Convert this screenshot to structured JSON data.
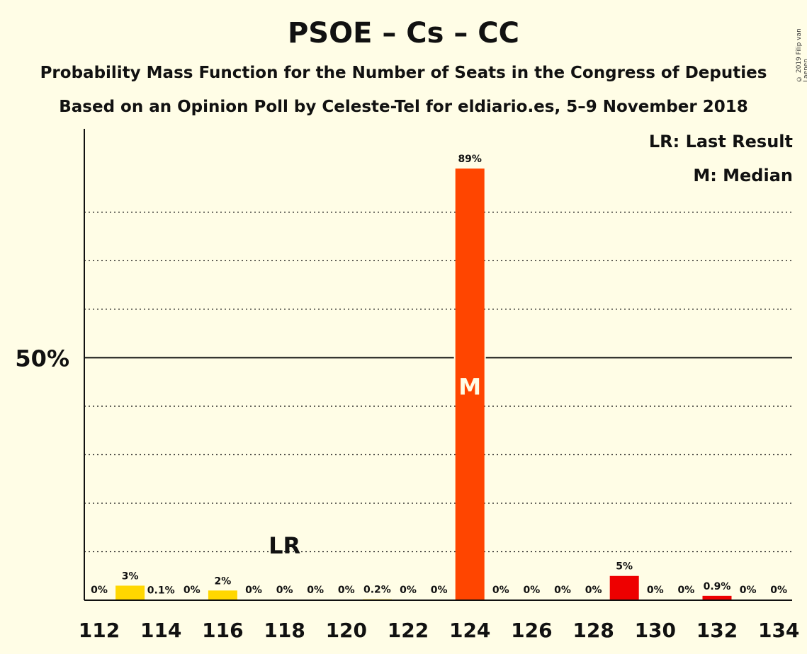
{
  "title": "PSOE – Cs – CC",
  "subtitle_1": "Probability Mass Function for the Number of Seats in the Congress of Deputies",
  "subtitle_2": "Based on an Opinion Poll by Celeste-Tel for eldiario.es, 5–9 November 2018",
  "copyright": "© 2019 Filip van Laenen",
  "legend": {
    "last_result": "LR: Last Result",
    "median": "M: Median"
  },
  "colors": {
    "background": "#fffde6",
    "minor_bar": "#ffd700",
    "median_bar": "#ff4500",
    "other_bar": "#ee0000"
  },
  "chart_data": {
    "type": "bar",
    "categories": [
      112,
      113,
      114,
      115,
      116,
      117,
      118,
      119,
      120,
      121,
      122,
      123,
      124,
      125,
      126,
      127,
      128,
      129,
      130,
      131,
      132,
      133,
      134
    ],
    "values": [
      0,
      3,
      0.1,
      0,
      2,
      0,
      0,
      0,
      0,
      0.2,
      0,
      0,
      89,
      0,
      0,
      0,
      0,
      5,
      0,
      0,
      0.9,
      0,
      0
    ],
    "value_labels": [
      "0%",
      "3%",
      "0.1%",
      "0%",
      "2%",
      "0%",
      "0%",
      "0%",
      "0%",
      "0.2%",
      "0%",
      "0%",
      "89%",
      "0%",
      "0%",
      "0%",
      "0%",
      "5%",
      "0%",
      "0%",
      "0.9%",
      "0%",
      "0%"
    ],
    "bar_colors": [
      "#ffd700",
      "#ffd700",
      "#ffd700",
      "#ffd700",
      "#ffd700",
      "#ffd700",
      "#ffd700",
      "#ffd700",
      "#ffd700",
      "#ffd700",
      "#ffd700",
      "#ffd700",
      "#ff4500",
      "#ee0000",
      "#ee0000",
      "#ee0000",
      "#ee0000",
      "#ee0000",
      "#ee0000",
      "#ee0000",
      "#ee0000",
      "#ee0000",
      "#ee0000"
    ],
    "x_tick_labels": [
      "112",
      "114",
      "116",
      "118",
      "120",
      "122",
      "124",
      "126",
      "128",
      "130",
      "132",
      "134"
    ],
    "y_tick_label": "50%",
    "ylim": [
      0,
      97.2
    ],
    "gridlines": [
      10,
      20,
      30,
      40,
      60,
      70,
      80
    ],
    "solid_line": 50,
    "median_seat": 124,
    "median_marker": "M",
    "last_result_seat": 118,
    "last_result_marker": "LR"
  }
}
